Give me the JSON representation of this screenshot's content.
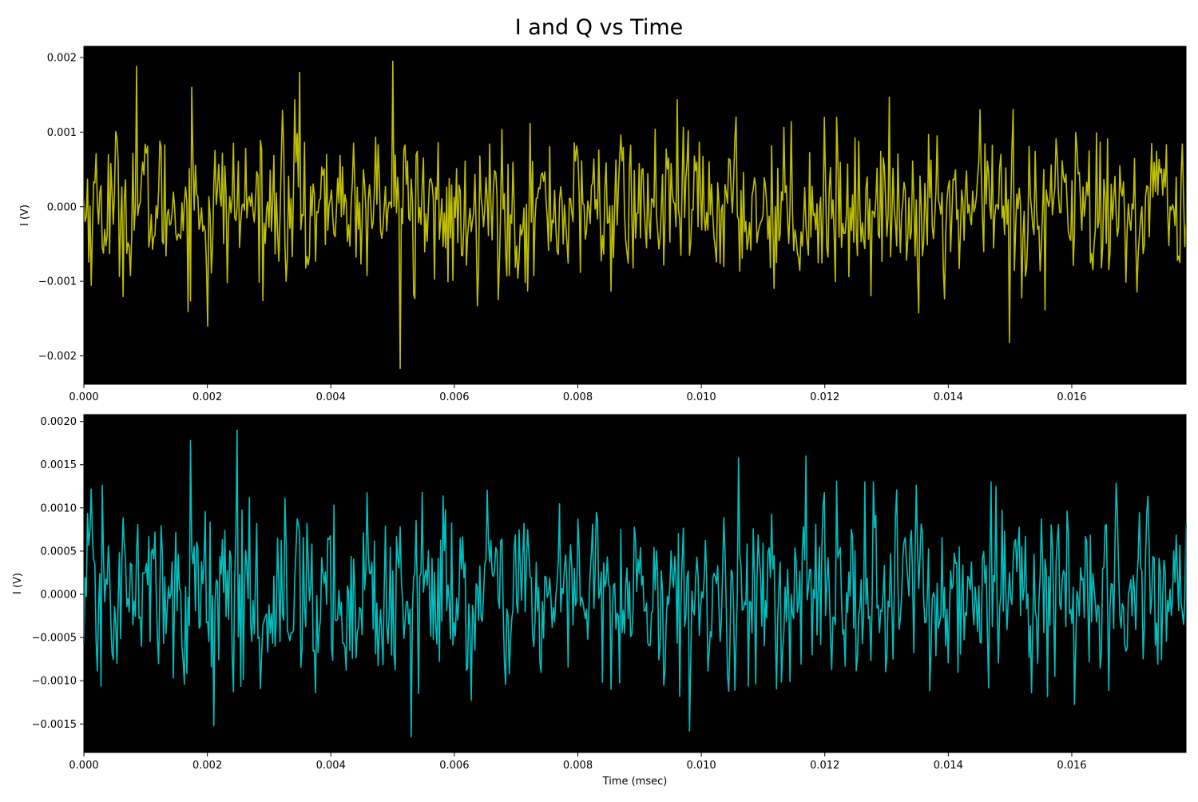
{
  "figure": {
    "title": "I and Q vs Time"
  },
  "chart_data": [
    {
      "type": "line",
      "title": "",
      "xlabel": "",
      "ylabel": "I (V)",
      "xlim": [
        0,
        0.01785
      ],
      "ylim": [
        -0.00238,
        0.00215
      ],
      "x_ticks": [
        0.0,
        0.002,
        0.004,
        0.006,
        0.008,
        0.01,
        0.012,
        0.014,
        0.016
      ],
      "x_tick_labels": [
        "0.000",
        "0.002",
        "0.004",
        "0.006",
        "0.008",
        "0.010",
        "0.012",
        "0.014",
        "0.016"
      ],
      "y_ticks": [
        0.002,
        0.001,
        0.0,
        -0.001,
        -0.002
      ],
      "y_tick_labels": [
        "0.002",
        "0.001",
        "0.000",
        "−0.001",
        "−0.002"
      ],
      "background": "#000000",
      "grid": false,
      "legend": "none",
      "series": [
        {
          "color": "#bfbf00",
          "x_start": 0.0,
          "x_end": 0.01785,
          "samples": 900,
          "rms": 0.00055,
          "peaks": [
            {
              "x": 0.00085,
              "y": 0.00188
            },
            {
              "x": 0.00175,
              "y": 0.0016
            },
            {
              "x": 0.002,
              "y": -0.0016
            },
            {
              "x": 0.0035,
              "y": 0.0018
            },
            {
              "x": 0.005,
              "y": 0.00195
            },
            {
              "x": 0.00512,
              "y": -0.00217
            },
            {
              "x": 0.015,
              "y": -0.00182
            },
            {
              "x": 0.012,
              "y": 0.0012
            }
          ]
        }
      ]
    },
    {
      "type": "line",
      "title": "",
      "xlabel": "Time (msec)",
      "ylabel": "I (V)",
      "xlim": [
        0,
        0.01785
      ],
      "ylim": [
        -0.00183,
        0.00208
      ],
      "x_ticks": [
        0.0,
        0.002,
        0.004,
        0.006,
        0.008,
        0.01,
        0.012,
        0.014,
        0.016
      ],
      "x_tick_labels": [
        "0.000",
        "0.002",
        "0.004",
        "0.006",
        "0.008",
        "0.010",
        "0.012",
        "0.014",
        "0.016"
      ],
      "y_ticks": [
        0.002,
        0.0015,
        0.001,
        0.0005,
        0.0,
        -0.0005,
        -0.001,
        -0.0015
      ],
      "y_tick_labels": [
        "0.0020",
        "0.0015",
        "0.0010",
        "0.0005",
        "0.0000",
        "−0.0005",
        "−0.0010",
        "−0.0015"
      ],
      "background": "#000000",
      "grid": false,
      "legend": "none",
      "series": [
        {
          "color": "#00bfbf",
          "x_start": 0.0,
          "x_end": 0.01785,
          "samples": 900,
          "rms": 0.00055,
          "peaks": [
            {
              "x": 0.00248,
              "y": 0.0019
            },
            {
              "x": 0.00172,
              "y": 0.00178
            },
            {
              "x": 0.0053,
              "y": -0.00165
            },
            {
              "x": 0.0098,
              "y": -0.00158
            },
            {
              "x": 0.0021,
              "y": -0.00152
            },
            {
              "x": 0.0106,
              "y": 0.00158
            },
            {
              "x": 0.0117,
              "y": 0.0016
            }
          ]
        }
      ]
    }
  ]
}
